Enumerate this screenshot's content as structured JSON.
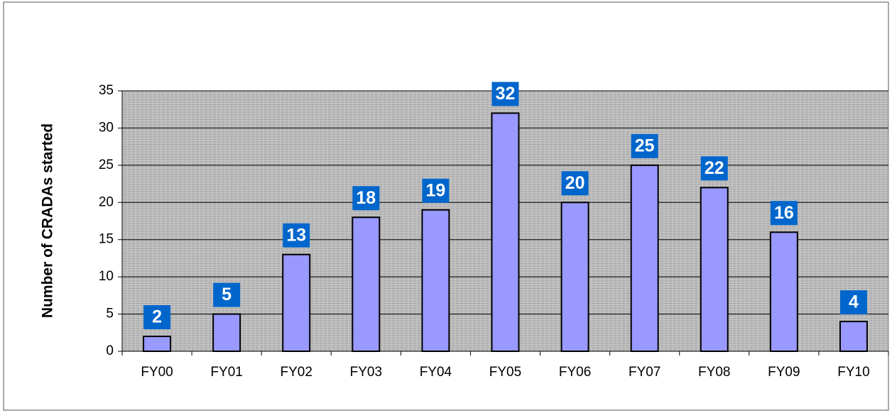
{
  "chart_data": {
    "type": "bar",
    "y_label": "Number of CRADAs started",
    "categories": [
      "FY00",
      "FY01",
      "FY02",
      "FY03",
      "FY04",
      "FY05",
      "FY06",
      "FY07",
      "FY08",
      "FY09",
      "FY10"
    ],
    "values": [
      2,
      5,
      13,
      18,
      19,
      32,
      20,
      25,
      22,
      16,
      4
    ],
    "color": "#9999ff",
    "label_color": "#0066cc",
    "ylim": [
      0,
      35
    ],
    "yticks": [
      0,
      5,
      10,
      15,
      20,
      25,
      30,
      35
    ],
    "grid": true
  }
}
